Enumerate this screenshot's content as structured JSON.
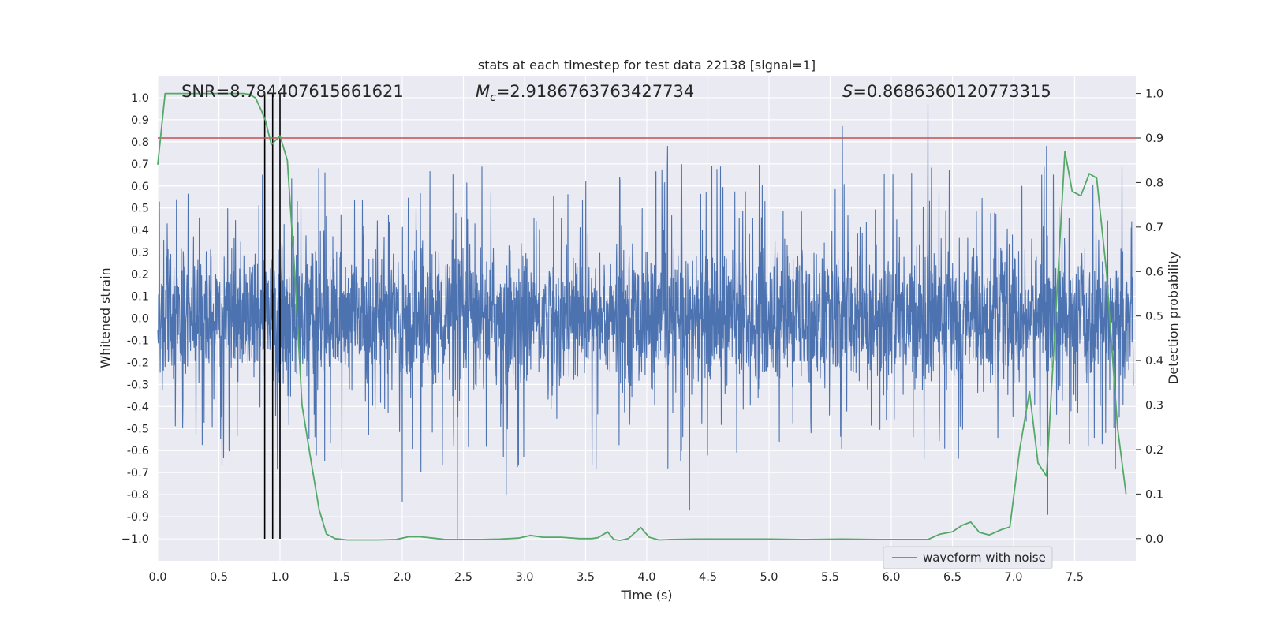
{
  "chart_data": {
    "type": "line",
    "title": "stats at each timestep for test data 22138 [signal=1]",
    "xlabel": "Time (s)",
    "ylabel": "Whitened strain",
    "y2label": "Detection probability",
    "xlim": [
      0.0,
      8.0
    ],
    "ylim": [
      -1.1,
      1.1
    ],
    "y2lim": [
      -0.05,
      1.04
    ],
    "grid": true,
    "legend_position": "lower-right",
    "x_ticks": [
      "0.0",
      "0.5",
      "1.0",
      "1.5",
      "2.0",
      "2.5",
      "3.0",
      "3.5",
      "4.0",
      "4.5",
      "5.0",
      "5.5",
      "6.0",
      "6.5",
      "7.0",
      "7.5"
    ],
    "y_ticks": [
      "1.0",
      "0.9",
      "0.8",
      "0.7",
      "0.6",
      "0.5",
      "0.4",
      "0.3",
      "0.2",
      "0.1",
      "0.0",
      "-0.1",
      "-0.2",
      "-0.3",
      "-0.4",
      "-0.5",
      "-0.6",
      "-0.7",
      "-0.8",
      "-0.9",
      "−1.0"
    ],
    "y2_ticks": [
      "1.0",
      "0.9",
      "0.8",
      "0.7",
      "0.6",
      "0.5",
      "0.4",
      "0.3",
      "0.2",
      "0.1",
      "0.0"
    ],
    "annotations": {
      "snr": "SNR=8.784407615661621",
      "mc_symbol": "M",
      "mc_sub": "c",
      "mc_value": "=2.9186763763427734",
      "s_symbol": "S",
      "s_value": "=0.8686360120773315"
    },
    "threshold": {
      "y2": 0.9,
      "color": "#c44e52"
    },
    "vertical_lines": [
      0.875,
      0.94,
      1.0
    ],
    "series": [
      {
        "name": "waveform with noise",
        "color": "#4c72b0",
        "style": "dense noise line",
        "envelope_typical": [
          -0.42,
          0.42
        ],
        "spikes": [
          {
            "x": 0.875,
            "y": 0.97
          },
          {
            "x": 0.94,
            "y": 0.98
          },
          {
            "x": 1.0,
            "y": -0.93
          },
          {
            "x": 2.45,
            "y": -1.0
          },
          {
            "x": 4.17,
            "y": 0.78
          },
          {
            "x": 4.35,
            "y": -0.87
          },
          {
            "x": 5.6,
            "y": 0.87
          },
          {
            "x": 6.3,
            "y": 0.97
          },
          {
            "x": 7.27,
            "y": 0.78
          },
          {
            "x": 7.28,
            "y": -0.89
          },
          {
            "x": 2.0,
            "y": -0.83
          },
          {
            "x": 2.85,
            "y": -0.8
          }
        ]
      },
      {
        "color": "#55a868",
        "axis": "right",
        "x": [
          0.0,
          0.06,
          0.12,
          0.2,
          0.3,
          0.4,
          0.5,
          0.6,
          0.7,
          0.75,
          0.8,
          0.85,
          0.88,
          0.93,
          1.0,
          1.06,
          1.12,
          1.18,
          1.25,
          1.32,
          1.38,
          1.45,
          1.55,
          1.65,
          1.8,
          1.95,
          2.05,
          2.15,
          2.25,
          2.35,
          2.5,
          2.65,
          2.8,
          2.95,
          3.05,
          3.15,
          3.3,
          3.45,
          3.55,
          3.6,
          3.68,
          3.73,
          3.78,
          3.85,
          3.95,
          4.02,
          4.1,
          4.2,
          4.4,
          4.6,
          4.8,
          5.0,
          5.3,
          5.6,
          5.9,
          6.1,
          6.3,
          6.4,
          6.5,
          6.58,
          6.65,
          6.72,
          6.8,
          6.9,
          6.97,
          7.05,
          7.13,
          7.2,
          7.27,
          7.33,
          7.42,
          7.48,
          7.55,
          7.62,
          7.68,
          7.76,
          7.85,
          7.92
        ],
        "values": [
          0.84,
          1.0,
          1.0,
          1.0,
          1.0,
          1.0,
          1.0,
          1.0,
          1.0,
          0.998,
          0.99,
          0.96,
          0.94,
          0.885,
          0.905,
          0.85,
          0.6,
          0.3,
          0.18,
          0.065,
          0.01,
          0.0,
          -0.003,
          -0.003,
          -0.003,
          -0.002,
          0.004,
          0.004,
          0.001,
          -0.002,
          -0.002,
          -0.002,
          -0.001,
          0.001,
          0.007,
          0.003,
          0.003,
          0.0,
          0.0,
          0.002,
          0.015,
          -0.002,
          -0.004,
          0.0,
          0.025,
          0.003,
          -0.003,
          -0.002,
          -0.001,
          -0.001,
          -0.001,
          -0.001,
          -0.002,
          -0.001,
          -0.002,
          -0.002,
          -0.002,
          0.01,
          0.015,
          0.03,
          0.037,
          0.014,
          0.008,
          0.02,
          0.026,
          0.2,
          0.33,
          0.17,
          0.14,
          0.43,
          0.87,
          0.78,
          0.77,
          0.82,
          0.81,
          0.6,
          0.25,
          0.1
        ]
      }
    ]
  },
  "legend": {
    "label": "waveform with noise"
  }
}
